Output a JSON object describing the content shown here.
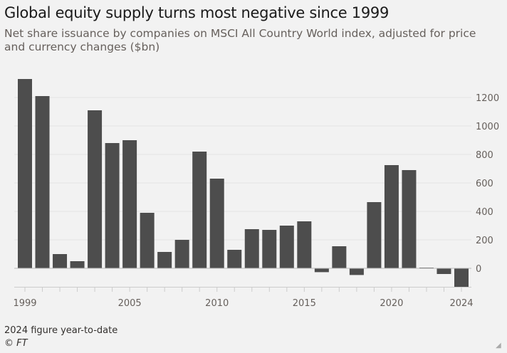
{
  "chart_data": {
    "type": "bar",
    "title": "Global equity supply turns most negative since 1999",
    "subtitle": "Net share issuance by companies on MSCI All Country World index, adjusted for price and currency changes ($bn)",
    "categories": [
      "1999",
      "2000",
      "2001",
      "2002",
      "2003",
      "2004",
      "2005",
      "2006",
      "2007",
      "2008",
      "2009",
      "2010",
      "2011",
      "2012",
      "2013",
      "2014",
      "2015",
      "2016",
      "2017",
      "2018",
      "2019",
      "2020",
      "2021",
      "2022",
      "2023",
      "2024"
    ],
    "values": [
      1330,
      1210,
      100,
      50,
      1110,
      880,
      900,
      390,
      115,
      200,
      820,
      630,
      130,
      275,
      270,
      300,
      330,
      -27,
      155,
      -47,
      465,
      725,
      690,
      5,
      -40,
      -130
    ],
    "xlabel": "",
    "ylabel": "",
    "ylim": [
      -130,
      1340
    ],
    "yticks": [
      0,
      200,
      400,
      600,
      800,
      1000,
      1200
    ],
    "xtick_labels": [
      "1999",
      "2005",
      "2010",
      "2015",
      "2020",
      "2024"
    ],
    "grid": true,
    "bar_color": "#4d4d4d",
    "note": "2024 figure year-to-date",
    "source": "© FT"
  }
}
